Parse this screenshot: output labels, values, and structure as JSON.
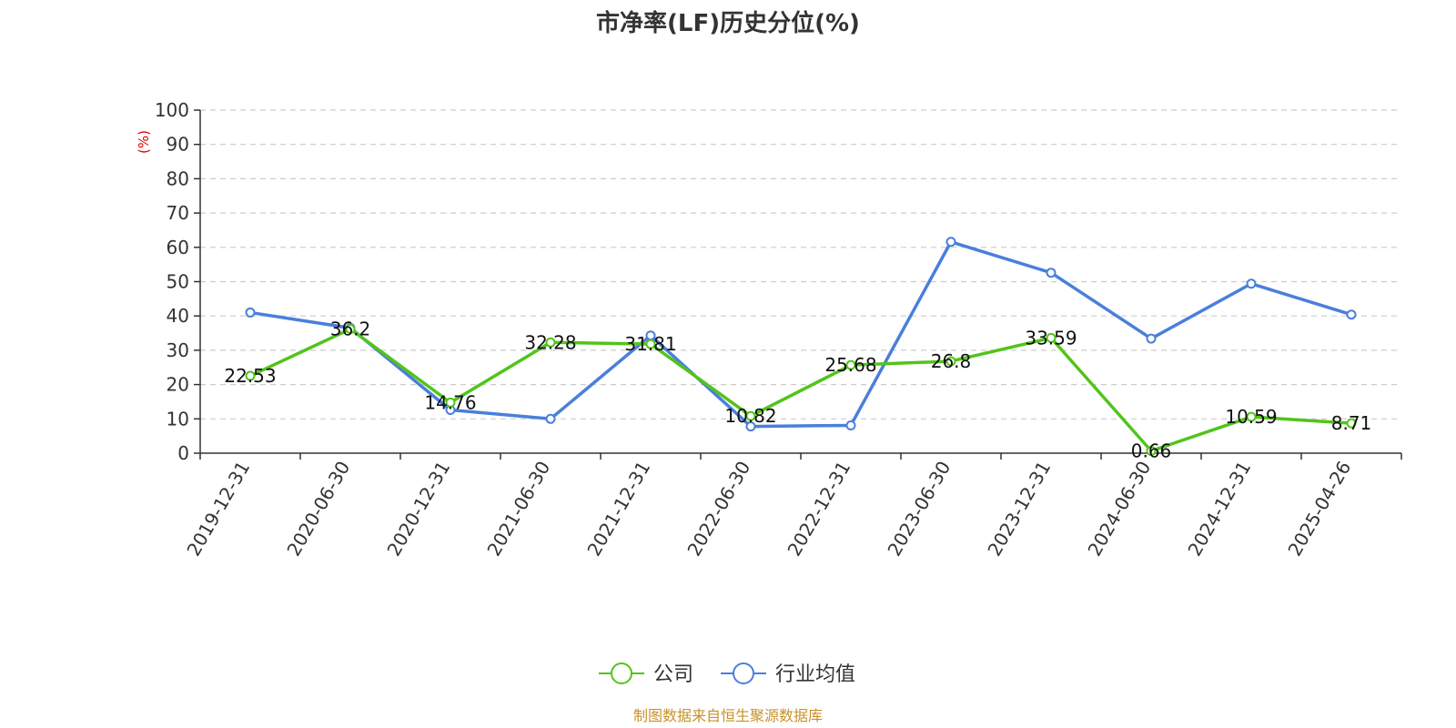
{
  "chart_data": {
    "type": "line",
    "title": "市净率(LF)历史分位(%)",
    "ylabel": "(%)",
    "xlabel": "",
    "ylim": [
      0,
      100
    ],
    "yticks": [
      0,
      10,
      20,
      30,
      40,
      50,
      60,
      70,
      80,
      90,
      100
    ],
    "grid": true,
    "legend_position": "bottom",
    "categories": [
      "2019-12-31",
      "2020-06-30",
      "2020-12-31",
      "2021-06-30",
      "2021-12-31",
      "2022-06-30",
      "2022-12-31",
      "2023-06-30",
      "2023-12-31",
      "2024-06-30",
      "2024-12-31",
      "2025-04-26"
    ],
    "series": [
      {
        "name": "公司",
        "color": "#52c41a",
        "values": [
          22.53,
          36.2,
          14.76,
          32.28,
          31.81,
          10.82,
          25.68,
          26.8,
          33.59,
          0.66,
          10.59,
          8.71
        ],
        "labels": [
          "22.53",
          "36.2",
          "14.76",
          "32.28",
          "31.81",
          "10.82",
          "25.68",
          "26.8",
          "33.59",
          "0.66",
          "10.59",
          "8.71"
        ]
      },
      {
        "name": "行业均值",
        "color": "#4a7fdb",
        "values": [
          41,
          36.5,
          12.6,
          10,
          34.3,
          7.8,
          8.1,
          61.6,
          52.6,
          33.4,
          49.4,
          40.4
        ]
      }
    ],
    "source": "制图数据来自恒生聚源数据库"
  }
}
